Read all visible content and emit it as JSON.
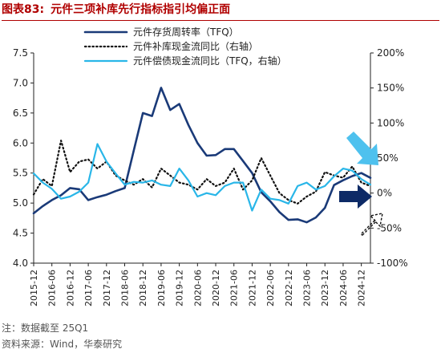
{
  "header": {
    "label": "图表83:",
    "title": "元件三项补库先行指标指引均偏正面"
  },
  "notes": {
    "note": "注：数据截至 25Q1",
    "source": "资料来源：Wind，华泰研究"
  },
  "colors": {
    "navy": "#1a3a78",
    "black": "#111111",
    "cyan": "#29b6e8",
    "arrow_navy": "#0d2a66",
    "arrow_cyan": "#4ec1ee"
  },
  "chart_data": {
    "type": "line",
    "x": [
      "2015-12",
      "2016-03",
      "2016-06",
      "2016-09",
      "2016-12",
      "2017-03",
      "2017-06",
      "2017-09",
      "2017-12",
      "2018-03",
      "2018-06",
      "2018-09",
      "2018-12",
      "2019-03",
      "2019-06",
      "2019-09",
      "2019-12",
      "2020-03",
      "2020-06",
      "2020-09",
      "2020-12",
      "2021-03",
      "2021-06",
      "2021-09",
      "2021-12",
      "2022-03",
      "2022-06",
      "2022-09",
      "2022-12",
      "2023-03",
      "2023-06",
      "2023-09",
      "2023-12",
      "2024-03",
      "2024-06",
      "2024-09",
      "2024-12",
      "2025-03"
    ],
    "xticks": [
      "2015-12",
      "2016-06",
      "2016-12",
      "2017-06",
      "2017-12",
      "2018-06",
      "2018-12",
      "2019-06",
      "2019-12",
      "2020-06",
      "2020-12",
      "2021-06",
      "2021-12",
      "2022-06",
      "2022-12",
      "2023-06",
      "2023-12",
      "2024-06",
      "2024-12"
    ],
    "y_left": {
      "ylim": [
        4.0,
        7.5
      ],
      "ticks": [
        "4.0",
        "4.5",
        "5.0",
        "5.5",
        "6.0",
        "6.5",
        "7.0",
        "7.5"
      ]
    },
    "y_right": {
      "ylim": [
        -100,
        200
      ],
      "ticks": [
        "-100%",
        "-50%",
        "0%",
        "50%",
        "100%",
        "150%",
        "200%"
      ]
    },
    "series": [
      {
        "name": "元件存货周转率（TFQ）",
        "axis": "left",
        "style": "solid",
        "values": [
          4.83,
          4.95,
          5.05,
          5.13,
          5.25,
          5.23,
          5.05,
          5.1,
          5.14,
          5.2,
          5.25,
          5.88,
          6.5,
          6.45,
          6.92,
          6.55,
          6.65,
          6.3,
          6.0,
          5.79,
          5.8,
          5.9,
          5.9,
          5.7,
          5.5,
          5.18,
          5.03,
          4.85,
          4.72,
          4.73,
          4.68,
          4.76,
          4.92,
          5.3,
          5.38,
          5.45,
          5.5,
          5.42
        ]
      },
      {
        "name": "元件补库现金流同比（右轴）",
        "axis": "right",
        "style": "dotted",
        "values": [
          -2,
          20,
          10,
          75,
          30,
          45,
          48,
          35,
          45,
          25,
          18,
          12,
          20,
          8,
          35,
          25,
          15,
          12,
          5,
          20,
          10,
          15,
          35,
          5,
          18,
          50,
          25,
          0,
          -10,
          -15,
          -5,
          2,
          30,
          25,
          22,
          38,
          15,
          10
        ]
      },
      {
        "name": "元件偿债现金流同比（TFQ，右轴）",
        "axis": "right",
        "style": "solid",
        "values": [
          28,
          15,
          6,
          -8,
          -5,
          2,
          15,
          70,
          45,
          28,
          12,
          16,
          15,
          18,
          12,
          10,
          35,
          18,
          -5,
          0,
          -3,
          10,
          15,
          15,
          -25,
          5,
          -8,
          -10,
          -15,
          10,
          15,
          5,
          10,
          24,
          35,
          32,
          20,
          12
        ]
      }
    ],
    "legend": {
      "placement": "top"
    },
    "grid": false
  }
}
